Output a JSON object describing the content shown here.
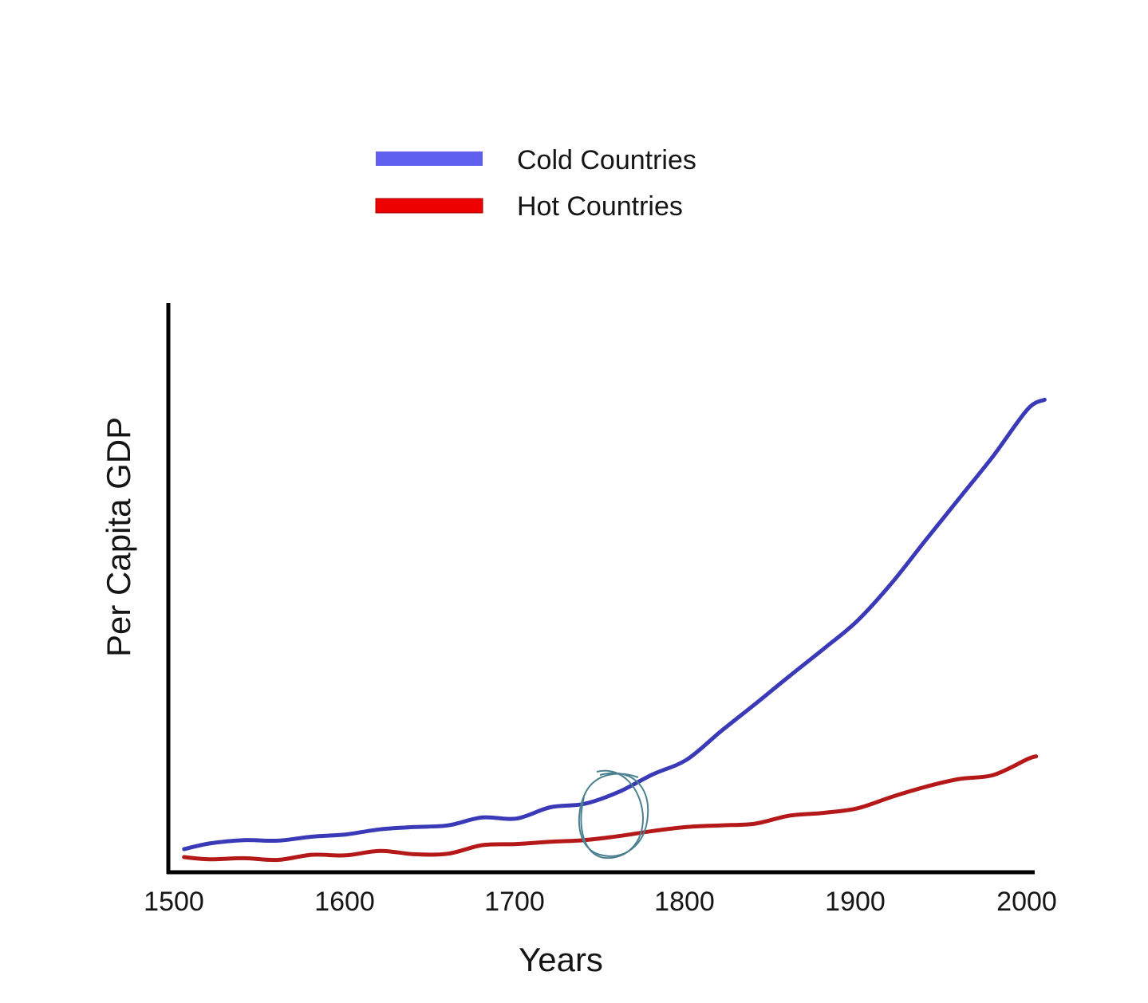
{
  "chart_data": {
    "type": "line",
    "title": "",
    "xlabel": "Years",
    "ylabel": "Per Capita GDP",
    "xlim": [
      1500,
      2000
    ],
    "ylim": [
      0,
      100
    ],
    "x_ticks": [
      "1500",
      "1600",
      "1700",
      "1800",
      "1900",
      "2000"
    ],
    "y_ticks": [],
    "grid": false,
    "legend_position": "top-center",
    "units_note": "y-axis unlabeled; values are relative estimates (0 = x-axis, 100 = top of y-axis)",
    "annotation": "hand-drawn circle around ~1750-1760 where the two lines begin to diverge",
    "series": [
      {
        "name": "Cold Countries",
        "color": "#3a3ab8",
        "legend_color": "#6060f0",
        "x": [
          1505,
          1520,
          1540,
          1560,
          1580,
          1600,
          1620,
          1640,
          1660,
          1680,
          1700,
          1720,
          1740,
          1760,
          1780,
          1800,
          1820,
          1840,
          1860,
          1880,
          1900,
          1920,
          1940,
          1960,
          1980,
          2000,
          2010
        ],
        "values": [
          3.8,
          4.8,
          5.4,
          5.3,
          6.0,
          6.4,
          7.3,
          7.7,
          8.0,
          9.4,
          9.2,
          11.2,
          11.8,
          13.9,
          17.0,
          19.6,
          24.6,
          29.4,
          34.3,
          39.1,
          44.1,
          50.7,
          58.3,
          65.8,
          73.3,
          81.5,
          83.2
        ]
      },
      {
        "name": "Hot Countries",
        "color": "#b51818",
        "legend_color": "#ee0000",
        "x": [
          1505,
          1520,
          1540,
          1560,
          1580,
          1600,
          1620,
          1640,
          1660,
          1680,
          1700,
          1720,
          1740,
          1760,
          1780,
          1800,
          1820,
          1840,
          1860,
          1880,
          1900,
          1920,
          1940,
          1960,
          1980,
          2000,
          2005
        ],
        "values": [
          2.4,
          2.0,
          2.2,
          1.9,
          2.8,
          2.7,
          3.5,
          2.9,
          3.0,
          4.5,
          4.7,
          5.1,
          5.4,
          6.1,
          7.0,
          7.7,
          8.0,
          8.3,
          9.7,
          10.2,
          11.0,
          13.0,
          14.8,
          16.2,
          16.9,
          19.7,
          20.2
        ]
      }
    ]
  },
  "legend": {
    "items": [
      {
        "label": "Cold Countries",
        "color": "#6060f0"
      },
      {
        "label": "Hot Countries",
        "color": "#ee0000"
      }
    ]
  },
  "axes": {
    "x_title": "Years",
    "y_title": "Per Capita GDP",
    "x_ticks": [
      "1500",
      "1600",
      "1700",
      "1800",
      "1900",
      "2000"
    ]
  },
  "annotation": {
    "shape": "circle",
    "color": "#4a8090"
  }
}
